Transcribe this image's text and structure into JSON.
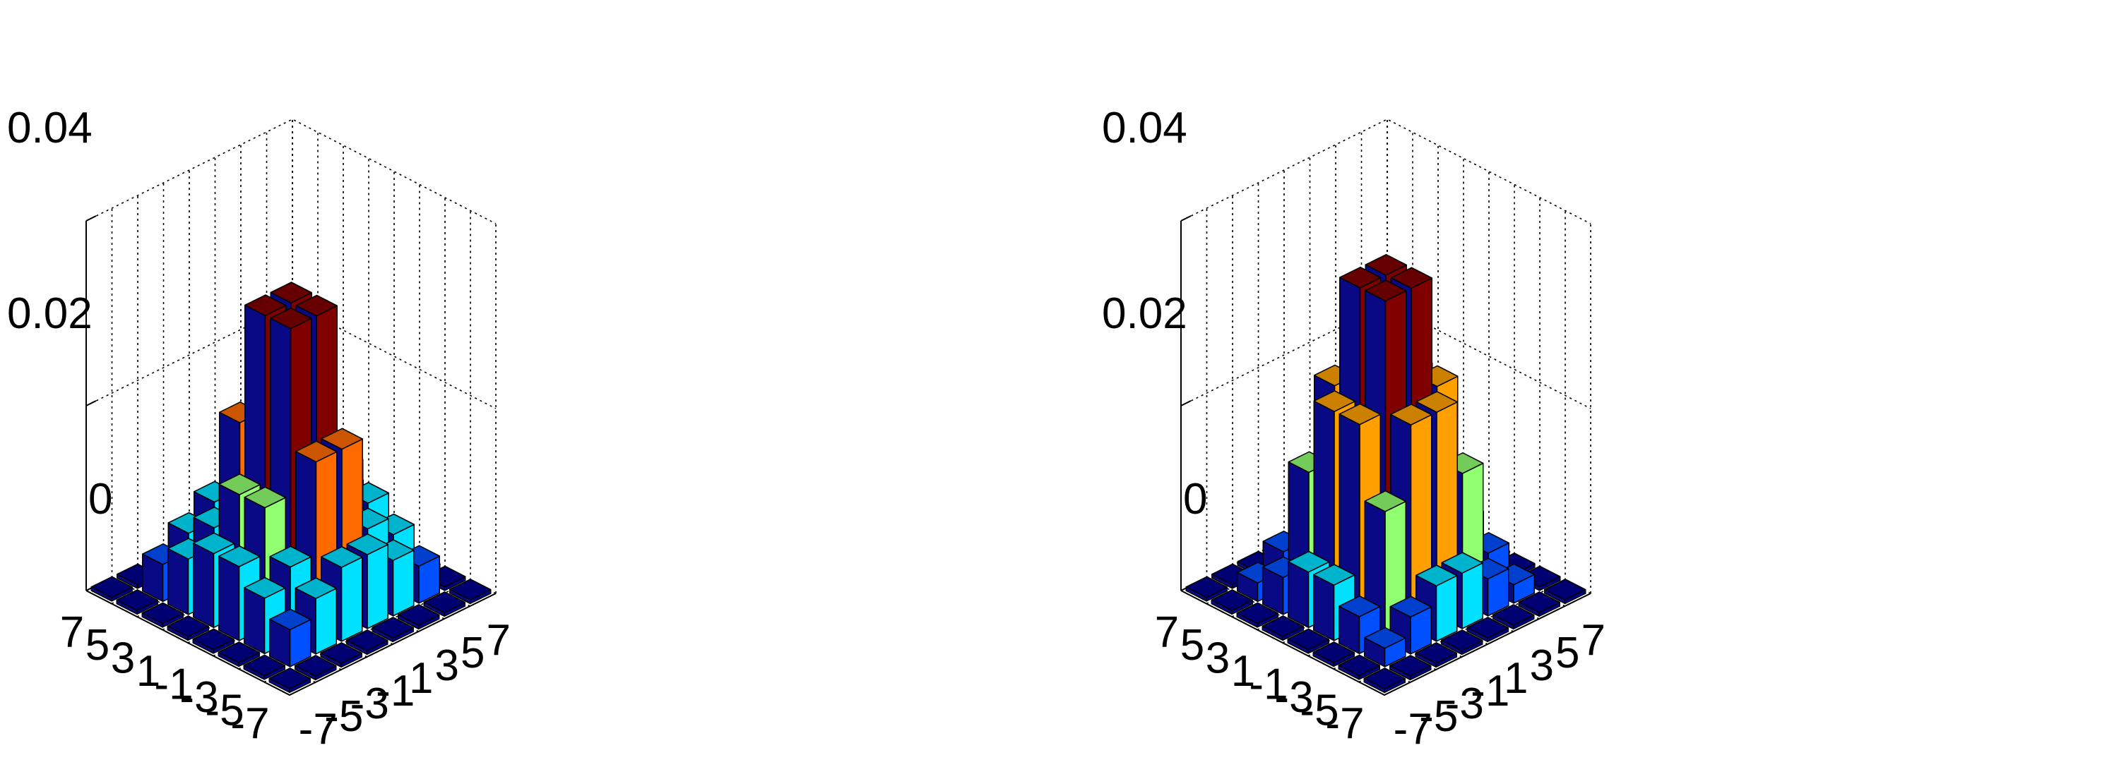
{
  "colors": {
    "level0": "#00008F",
    "level_low": "#0050FF",
    "level_cyan": "#00E0FF",
    "level_green": "#90FF70",
    "level_orange_left": "#FF6A00",
    "level_orange_right": "#FFA000",
    "level_top": "#800000",
    "side_blue": "#0A0A9C"
  },
  "chart_data": [
    {
      "type": "bar3d",
      "title": "",
      "xlabel": "",
      "ylabel": "",
      "zlabel": "",
      "zlim": [
        0,
        0.04
      ],
      "zticks": [
        "0.04",
        "0.02",
        "0"
      ],
      "x_ticks": [
        "-7",
        "-5",
        "-3",
        "-1",
        "1",
        "3",
        "5",
        "7"
      ],
      "y_ticks": [
        "7",
        "5",
        "3",
        "1",
        "-1",
        "-3",
        "-5",
        "-7"
      ],
      "grid": true,
      "values": [
        [
          0,
          0,
          0,
          0,
          0,
          0,
          0,
          0
        ],
        [
          0,
          0.004,
          0.006,
          0.008,
          0.008,
          0.006,
          0.004,
          0
        ],
        [
          0,
          0.006,
          0.008,
          0.018,
          0.018,
          0.008,
          0.006,
          0
        ],
        [
          0,
          0.008,
          0.013,
          0.031,
          0.031,
          0.013,
          0.008,
          0
        ],
        [
          0,
          0.008,
          0.013,
          0.031,
          0.031,
          0.013,
          0.008,
          0
        ],
        [
          0,
          0.006,
          0.008,
          0.018,
          0.018,
          0.008,
          0.006,
          0
        ],
        [
          0,
          0.004,
          0.006,
          0.008,
          0.008,
          0.006,
          0.004,
          0
        ],
        [
          0,
          0,
          0,
          0,
          0,
          0,
          0,
          0
        ]
      ]
    },
    {
      "type": "bar3d",
      "title": "",
      "xlabel": "",
      "ylabel": "",
      "zlabel": "",
      "zlim": [
        0,
        0.04
      ],
      "zticks": [
        "0.04",
        "0.02",
        "0"
      ],
      "x_ticks": [
        "-7",
        "-5",
        "-3",
        "-1",
        "1",
        "3",
        "5",
        "7"
      ],
      "y_ticks": [
        "7",
        "5",
        "3",
        "1",
        "-1",
        "-3",
        "-5",
        "-7"
      ],
      "grid": true,
      "values": [
        [
          0,
          0,
          0,
          0,
          0,
          0,
          0,
          0
        ],
        [
          0,
          0.002,
          0.004,
          0.006,
          0.006,
          0.004,
          0.002,
          0
        ],
        [
          0,
          0.004,
          0.014,
          0.022,
          0.022,
          0.014,
          0.004,
          0
        ],
        [
          0,
          0.006,
          0.022,
          0.034,
          0.034,
          0.022,
          0.006,
          0
        ],
        [
          0,
          0.006,
          0.022,
          0.034,
          0.034,
          0.022,
          0.006,
          0
        ],
        [
          0,
          0.004,
          0.014,
          0.022,
          0.022,
          0.014,
          0.004,
          0
        ],
        [
          0,
          0.002,
          0.004,
          0.006,
          0.006,
          0.004,
          0.002,
          0
        ],
        [
          0,
          0,
          0,
          0,
          0,
          0,
          0,
          0
        ]
      ]
    }
  ]
}
